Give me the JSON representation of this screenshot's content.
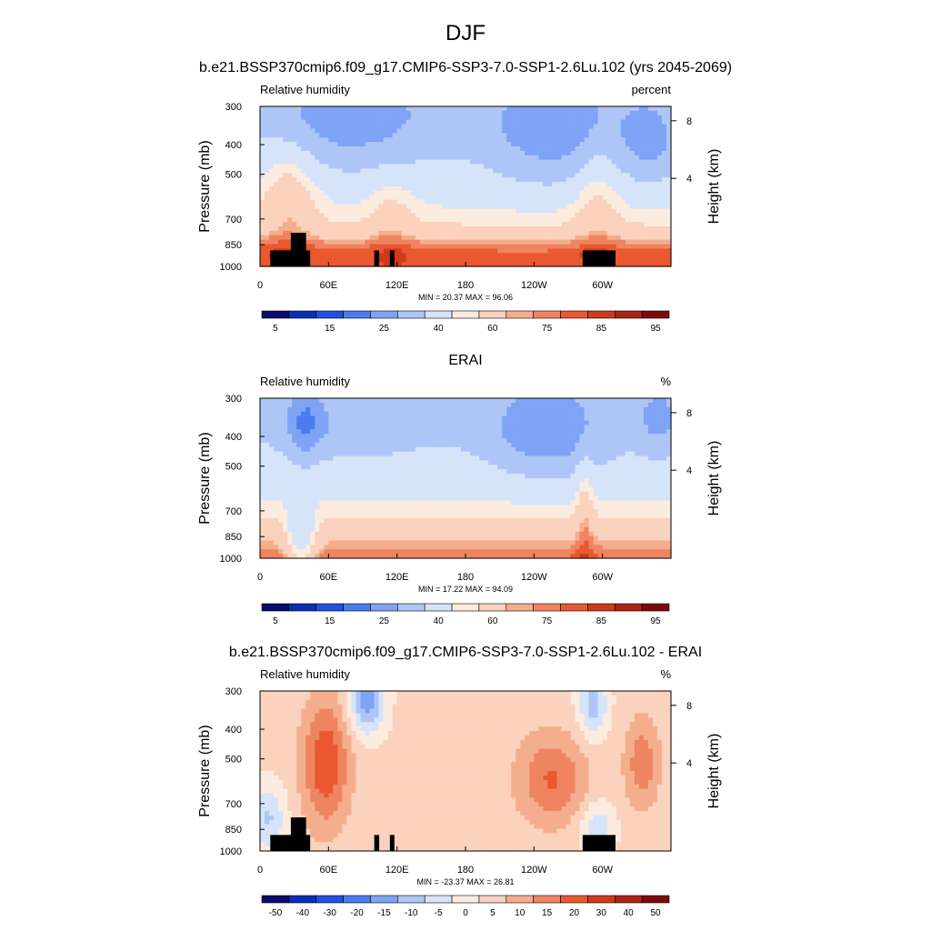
{
  "figure_title": "DJF",
  "colors": {
    "abs_scale": [
      "#0b0d6e",
      "#0a2eb8",
      "#2050e0",
      "#4a7cf0",
      "#7fa3f5",
      "#aec6f7",
      "#d6e4fa",
      "#fcecdf",
      "#fad2bd",
      "#f5ae8d",
      "#ef8460",
      "#e9582f",
      "#cf3a1b",
      "#ad2412",
      "#7d0a0a"
    ],
    "diff_scale": [
      "#0b0d6e",
      "#0a2eb8",
      "#2050e0",
      "#4a7cf0",
      "#7fa3f5",
      "#aec6f7",
      "#d6e4fa",
      "#fcecdf",
      "#fad2bd",
      "#f5ae8d",
      "#ef8460",
      "#e9582f",
      "#cf3a1b",
      "#ad2412",
      "#7d0a0a"
    ],
    "terrain": "#000000"
  },
  "chart_data": [
    {
      "type": "heatmap",
      "name": "model",
      "title": "b.e21.BSSP370cmip6.f09_g17.CMIP6-SSP3-7.0-SSP1-2.6Lu.102 (yrs 2045-2069)",
      "left_label": "Relative humidity",
      "right_label": "percent",
      "ylabel": "Pressure (mb)",
      "y2label": "Height (km)",
      "yticks": [
        "300",
        "400",
        "500",
        "700",
        "850",
        "1000"
      ],
      "y2ticks": [
        "8",
        "4"
      ],
      "xticks": [
        "0",
        "60E",
        "120E",
        "180",
        "120W",
        "60W"
      ],
      "stats": "MIN =  20.37  MAX =  96.06",
      "colorbar_labels": [
        "5",
        "15",
        "25",
        "40",
        "60",
        "75",
        "85",
        "95"
      ],
      "min": 20.37,
      "max": 96.06
    },
    {
      "type": "heatmap",
      "name": "obs",
      "title": "ERAI",
      "left_label": "Relative humidity",
      "right_label": "%",
      "ylabel": "Pressure (mb)",
      "y2label": "Height (km)",
      "yticks": [
        "300",
        "400",
        "500",
        "700",
        "850",
        "1000"
      ],
      "y2ticks": [
        "8",
        "4"
      ],
      "xticks": [
        "0",
        "60E",
        "120E",
        "180",
        "120W",
        "60W"
      ],
      "stats": "MIN =  17.22  MAX =  94.09",
      "colorbar_labels": [
        "5",
        "15",
        "25",
        "40",
        "60",
        "75",
        "85",
        "95"
      ],
      "min": 17.22,
      "max": 94.09
    },
    {
      "type": "heatmap",
      "name": "diff",
      "title": "b.e21.BSSP370cmip6.f09_g17.CMIP6-SSP3-7.0-SSP1-2.6Lu.102 - ERAI",
      "left_label": "Relative humidity",
      "right_label": "%",
      "ylabel": "Pressure (mb)",
      "y2label": "Height (km)",
      "yticks": [
        "300",
        "400",
        "500",
        "700",
        "850",
        "1000"
      ],
      "y2ticks": [
        "8",
        "4"
      ],
      "xticks": [
        "0",
        "60E",
        "120E",
        "180",
        "120W",
        "60W"
      ],
      "stats": "MIN = -23.37  MAX =  26.81",
      "colorbar_labels": [
        "-50",
        "-40",
        "-30",
        "-20",
        "-15",
        "-10",
        "-5",
        "0",
        "5",
        "10",
        "15",
        "20",
        "30",
        "40",
        "50"
      ],
      "min": -23.37,
      "max": 26.81
    }
  ]
}
